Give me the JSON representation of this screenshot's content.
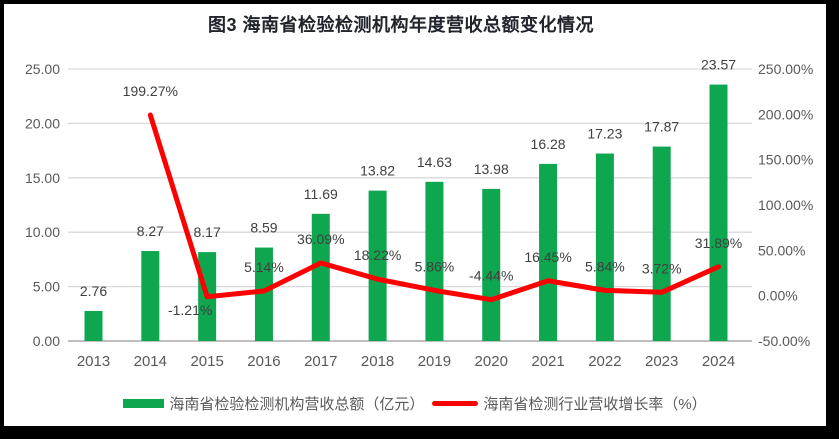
{
  "title": "图3 海南省检验检测机构年度营收总额变化情况",
  "colors": {
    "bar": "#0FA650",
    "line": "#FF0000",
    "grid": "#D9D9D9",
    "axis_line": "#BFBFBF",
    "tick_text": "#595959",
    "label_text": "#404040",
    "title_text": "#20242C",
    "background": "#FFFFFF",
    "frame": "#000000"
  },
  "chart_data": {
    "type": "bar",
    "subtype": "combo-bar-line",
    "title": "图3 海南省检验检测机构年度营收总额变化情况",
    "categories": [
      "2013",
      "2014",
      "2015",
      "2016",
      "2017",
      "2018",
      "2019",
      "2020",
      "2021",
      "2022",
      "2023",
      "2024"
    ],
    "series": [
      {
        "name": "海南省检验检测机构营收总额（亿元）",
        "chart_type": "bar",
        "axis": "left",
        "color": "#0FA650",
        "values": [
          2.76,
          8.27,
          8.17,
          8.59,
          11.69,
          13.82,
          14.63,
          13.98,
          16.28,
          17.23,
          17.87,
          23.57
        ],
        "labels": [
          "2.76",
          "8.27",
          "8.17",
          "8.59",
          "11.69",
          "13.82",
          "14.63",
          "13.98",
          "16.28",
          "17.23",
          "17.87",
          "23.57"
        ]
      },
      {
        "name": "海南省检测行业营收增长率（%）",
        "chart_type": "line",
        "axis": "right",
        "color": "#FF0000",
        "values": [
          null,
          199.27,
          -1.21,
          5.14,
          36.09,
          18.22,
          5.86,
          -4.44,
          16.45,
          5.84,
          3.72,
          31.89
        ],
        "labels": [
          null,
          "199.27%",
          "-1.21%",
          "5.14%",
          "36.09%",
          "18.22%",
          "5.86%",
          "-4.44%",
          "16.45%",
          "5.84%",
          "3.72%",
          "31.89%"
        ]
      }
    ],
    "left_axis": {
      "min": 0,
      "max": 25,
      "step": 5,
      "tick_labels": [
        "0.00",
        "5.00",
        "10.00",
        "15.00",
        "20.00",
        "25.00"
      ]
    },
    "right_axis": {
      "min": -50,
      "max": 250,
      "step": 50,
      "tick_labels": [
        "-50.00%",
        "0.00%",
        "50.00%",
        "100.00%",
        "150.00%",
        "200.00%",
        "250.00%"
      ]
    },
    "grid": true,
    "legend_position": "bottom"
  },
  "legend": {
    "items": [
      {
        "label": "海南省检验检测机构营收总额（亿元）",
        "swatch": "bar",
        "color": "#0FA650"
      },
      {
        "label": "海南省检测行业营收增长率（%）",
        "swatch": "line",
        "color": "#FF0000"
      }
    ]
  }
}
